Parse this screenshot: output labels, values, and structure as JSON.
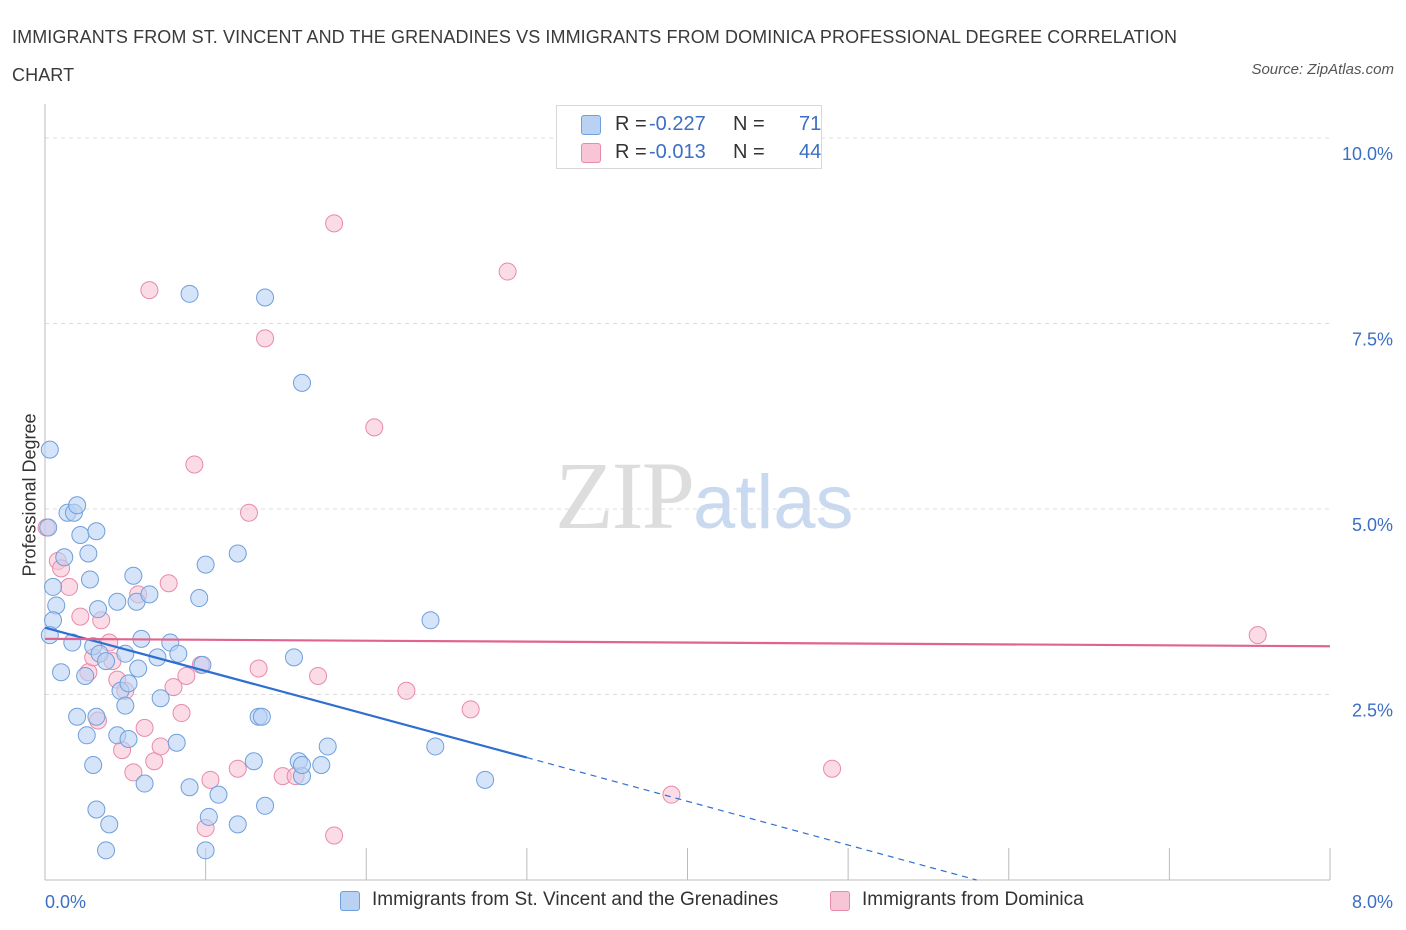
{
  "header": {
    "title": "IMMIGRANTS FROM ST. VINCENT AND THE GRENADINES VS IMMIGRANTS FROM DOMINICA PROFESSIONAL DEGREE CORRELATION CHART",
    "source": "Source: ZipAtlas.com"
  },
  "watermark": {
    "zip": "ZIP",
    "atlas": "atlas"
  },
  "legend": {
    "blue": {
      "r_label": "R =",
      "r_value": "-0.227",
      "n_label": "N =",
      "n_value": "71"
    },
    "pink": {
      "r_label": "R =",
      "r_value": "-0.013",
      "n_label": "N =",
      "n_value": "44"
    }
  },
  "colors": {
    "blue_fill": "#b9d2f3",
    "blue_stroke": "#6f9fdc",
    "blue_line": "#2f6fd0",
    "pink_fill": "#f8c5d6",
    "pink_stroke": "#e88aa9",
    "pink_line": "#e0648e",
    "grid": "#dcdcdc",
    "axis_text": "#3b6fc4"
  },
  "chart_data": {
    "type": "scatter",
    "title": "IMMIGRANTS FROM ST. VINCENT AND THE GRENADINES VS IMMIGRANTS FROM DOMINICA PROFESSIONAL DEGREE CORRELATION CHART",
    "xlabel": "",
    "ylabel": "Professional Degree",
    "xlim": [
      0,
      8
    ],
    "ylim": [
      0,
      10
    ],
    "x_tick_labels": [
      "0.0%",
      "8.0%"
    ],
    "y_tick_labels": [
      "2.5%",
      "5.0%",
      "7.5%",
      "10.0%"
    ],
    "y_ticks": [
      2.5,
      5.0,
      7.5,
      10.0
    ],
    "grid": "horizontal dashed",
    "legend_position": "top-center and bottom",
    "series": [
      {
        "name": "Immigrants from St. Vincent and the Grenadines",
        "color": "#6f9fdc",
        "trend": {
          "x": [
            0.0,
            3.0
          ],
          "y": [
            3.4,
            1.65
          ],
          "dashed_extension_to": [
            5.8,
            0.0
          ]
        },
        "points": [
          [
            0.03,
            5.8
          ],
          [
            0.02,
            4.75
          ],
          [
            0.05,
            3.95
          ],
          [
            0.07,
            3.7
          ],
          [
            0.05,
            3.5
          ],
          [
            0.03,
            3.3
          ],
          [
            0.1,
            2.8
          ],
          [
            0.12,
            4.35
          ],
          [
            0.14,
            4.95
          ],
          [
            0.18,
            4.95
          ],
          [
            0.2,
            5.05
          ],
          [
            0.22,
            4.65
          ],
          [
            0.27,
            4.4
          ],
          [
            0.28,
            4.05
          ],
          [
            0.32,
            4.7
          ],
          [
            0.33,
            3.65
          ],
          [
            0.17,
            3.2
          ],
          [
            0.3,
            3.15
          ],
          [
            0.34,
            3.05
          ],
          [
            0.25,
            2.75
          ],
          [
            0.38,
            2.95
          ],
          [
            0.45,
            3.75
          ],
          [
            0.47,
            2.55
          ],
          [
            0.5,
            2.35
          ],
          [
            0.52,
            2.65
          ],
          [
            0.55,
            4.1
          ],
          [
            0.57,
            3.75
          ],
          [
            0.58,
            2.85
          ],
          [
            0.6,
            3.25
          ],
          [
            0.65,
            3.85
          ],
          [
            0.7,
            3.0
          ],
          [
            0.72,
            2.45
          ],
          [
            0.78,
            3.2
          ],
          [
            0.82,
            1.85
          ],
          [
            0.83,
            3.05
          ],
          [
            0.9,
            1.25
          ],
          [
            0.98,
            2.9
          ],
          [
            0.45,
            1.95
          ],
          [
            0.52,
            1.9
          ],
          [
            0.2,
            2.2
          ],
          [
            0.26,
            1.95
          ],
          [
            0.32,
            2.2
          ],
          [
            0.3,
            1.55
          ],
          [
            0.32,
            0.95
          ],
          [
            0.4,
            0.75
          ],
          [
            0.38,
            0.4
          ],
          [
            0.62,
            1.3
          ],
          [
            0.9,
            7.9
          ],
          [
            1.0,
            4.25
          ],
          [
            0.96,
            3.8
          ],
          [
            1.0,
            0.4
          ],
          [
            1.02,
            0.85
          ],
          [
            1.08,
            1.15
          ],
          [
            1.2,
            0.75
          ],
          [
            1.2,
            4.4
          ],
          [
            1.3,
            1.6
          ],
          [
            1.33,
            2.2
          ],
          [
            1.35,
            2.2
          ],
          [
            1.37,
            7.85
          ],
          [
            1.37,
            1.0
          ],
          [
            1.55,
            3.0
          ],
          [
            1.58,
            1.6
          ],
          [
            1.6,
            1.4
          ],
          [
            1.6,
            6.7
          ],
          [
            1.72,
            1.55
          ],
          [
            1.76,
            1.8
          ],
          [
            2.4,
            3.5
          ],
          [
            2.43,
            1.8
          ],
          [
            2.74,
            1.35
          ],
          [
            1.6,
            1.55
          ],
          [
            0.5,
            3.05
          ]
        ]
      },
      {
        "name": "Immigrants from Dominica",
        "color": "#e88aa9",
        "trend": {
          "x": [
            0.0,
            8.0
          ],
          "y": [
            3.25,
            3.15
          ]
        },
        "points": [
          [
            0.01,
            4.75
          ],
          [
            0.08,
            4.3
          ],
          [
            0.1,
            4.2
          ],
          [
            0.15,
            3.95
          ],
          [
            0.22,
            3.55
          ],
          [
            0.27,
            2.8
          ],
          [
            0.3,
            3.0
          ],
          [
            0.33,
            2.15
          ],
          [
            0.35,
            3.5
          ],
          [
            0.4,
            3.2
          ],
          [
            0.42,
            2.95
          ],
          [
            0.45,
            2.7
          ],
          [
            0.48,
            1.75
          ],
          [
            0.5,
            2.55
          ],
          [
            0.55,
            1.45
          ],
          [
            0.58,
            3.85
          ],
          [
            0.62,
            2.05
          ],
          [
            0.65,
            7.95
          ],
          [
            0.68,
            1.6
          ],
          [
            0.72,
            1.8
          ],
          [
            0.77,
            4.0
          ],
          [
            0.8,
            2.6
          ],
          [
            0.85,
            2.25
          ],
          [
            0.88,
            2.75
          ],
          [
            0.93,
            5.6
          ],
          [
            0.97,
            2.9
          ],
          [
            1.0,
            0.7
          ],
          [
            1.03,
            1.35
          ],
          [
            1.27,
            4.95
          ],
          [
            1.2,
            1.5
          ],
          [
            1.33,
            2.85
          ],
          [
            1.37,
            7.3
          ],
          [
            1.48,
            1.4
          ],
          [
            1.56,
            1.4
          ],
          [
            1.7,
            2.75
          ],
          [
            1.8,
            8.85
          ],
          [
            1.8,
            0.6
          ],
          [
            2.05,
            6.1
          ],
          [
            2.25,
            2.55
          ],
          [
            2.65,
            2.3
          ],
          [
            2.88,
            8.2
          ],
          [
            3.9,
            1.15
          ],
          [
            4.9,
            1.5
          ],
          [
            7.55,
            3.3
          ]
        ]
      }
    ]
  },
  "bottom_legend": {
    "blue_label": "Immigrants from St. Vincent and the Grenadines",
    "pink_label": "Immigrants from Dominica"
  }
}
